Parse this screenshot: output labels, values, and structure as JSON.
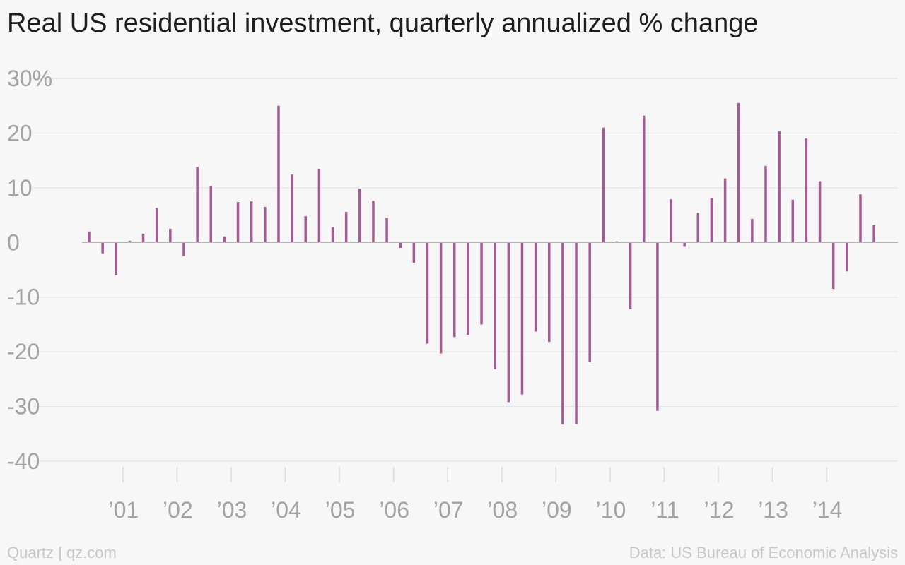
{
  "chart_data": {
    "type": "bar",
    "title": "Real US residential investment, quarterly annualized % change",
    "xlabel": "",
    "ylabel": "",
    "ylim": [
      -40,
      30
    ],
    "yticks": [
      "30%",
      "20",
      "10",
      "0",
      "-10",
      "-20",
      "-30",
      "-40"
    ],
    "ytick_values": [
      30,
      20,
      10,
      0,
      -10,
      -20,
      -30,
      -40
    ],
    "xtick_labels": [
      "’01",
      "’02",
      "’03",
      "’04",
      "’05",
      "’06",
      "’07",
      "’08",
      "’09",
      "’10",
      "’11",
      "’12",
      "’13",
      "’14"
    ],
    "xtick_years": [
      2001,
      2002,
      2003,
      2004,
      2005,
      2006,
      2007,
      2008,
      2009,
      2010,
      2011,
      2012,
      2013,
      2014
    ],
    "start": "2000-Q2",
    "values": [
      2.0,
      -2.0,
      -6.0,
      0.3,
      1.6,
      6.3,
      2.5,
      -2.5,
      13.8,
      10.3,
      1.1,
      7.4,
      7.5,
      6.5,
      25.0,
      12.4,
      4.8,
      13.4,
      2.8,
      5.6,
      9.8,
      7.6,
      4.5,
      -1.0,
      -3.7,
      -18.5,
      -20.3,
      -17.3,
      -16.9,
      -15.0,
      -23.2,
      -29.2,
      -27.8,
      -16.3,
      -18.2,
      -33.3,
      -33.2,
      -21.9,
      21.0,
      0.2,
      -12.2,
      23.2,
      -30.8,
      7.9,
      -0.8,
      5.4,
      8.1,
      11.7,
      25.5,
      4.3,
      14.0,
      20.3,
      7.8,
      19.0,
      11.2,
      -8.5,
      -5.3,
      8.8,
      3.2
    ],
    "bar_color": "#a45a92",
    "grid": true
  },
  "footer": {
    "source": "Quartz | qz.com",
    "data_credit": "Data: US Bureau of Economic Analysis"
  }
}
